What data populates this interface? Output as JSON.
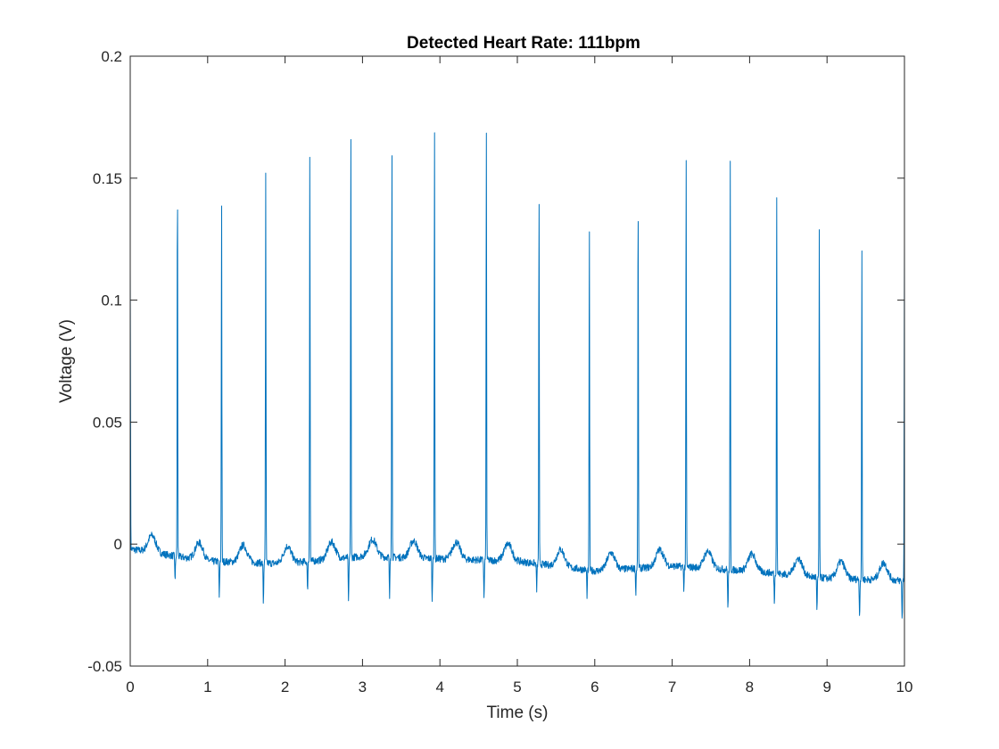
{
  "chart_data": {
    "type": "line",
    "title": "Detected Heart Rate: 111bpm",
    "xlabel": "Time (s)",
    "ylabel": "Voltage (V)",
    "xlim": [
      0,
      10
    ],
    "ylim": [
      -0.05,
      0.2
    ],
    "x_ticks": [
      "0",
      "1",
      "2",
      "3",
      "4",
      "5",
      "6",
      "7",
      "8",
      "9",
      "10"
    ],
    "y_ticks": [
      "-0.05",
      "0",
      "0.05",
      "0.1",
      "0.15",
      "0.2"
    ],
    "grid": false,
    "legend": "none",
    "line_color": "#0072BD",
    "series": [
      {
        "r_peaks": [
          {
            "t": 0.0,
            "v": 0.115
          },
          {
            "t": 0.61,
            "v": 0.151
          },
          {
            "t": 1.18,
            "v": 0.143
          },
          {
            "t": 1.75,
            "v": 0.151
          },
          {
            "t": 2.32,
            "v": 0.163
          },
          {
            "t": 2.85,
            "v": 0.166
          },
          {
            "t": 3.38,
            "v": 0.163
          },
          {
            "t": 3.93,
            "v": 0.173
          },
          {
            "t": 4.6,
            "v": 0.168
          },
          {
            "t": 5.28,
            "v": 0.142
          },
          {
            "t": 5.93,
            "v": 0.132
          },
          {
            "t": 6.56,
            "v": 0.145
          },
          {
            "t": 7.18,
            "v": 0.16
          },
          {
            "t": 7.75,
            "v": 0.156
          },
          {
            "t": 8.35,
            "v": 0.142
          },
          {
            "t": 8.9,
            "v": 0.129
          },
          {
            "t": 9.45,
            "v": 0.12
          },
          {
            "t": 10.0,
            "v": 0.124
          }
        ],
        "s_troughs": [
          {
            "t": 0.58,
            "v": -0.015
          },
          {
            "t": 1.15,
            "v": -0.022
          },
          {
            "t": 1.72,
            "v": -0.024
          },
          {
            "t": 2.29,
            "v": -0.019
          },
          {
            "t": 2.82,
            "v": -0.025
          },
          {
            "t": 3.35,
            "v": -0.022
          },
          {
            "t": 3.9,
            "v": -0.024
          },
          {
            "t": 4.57,
            "v": -0.023
          },
          {
            "t": 5.25,
            "v": -0.019
          },
          {
            "t": 5.9,
            "v": -0.021
          },
          {
            "t": 6.53,
            "v": -0.02
          },
          {
            "t": 7.15,
            "v": -0.018
          },
          {
            "t": 7.72,
            "v": -0.027
          },
          {
            "t": 8.32,
            "v": -0.024
          },
          {
            "t": 8.87,
            "v": -0.028
          },
          {
            "t": 9.42,
            "v": -0.03
          },
          {
            "t": 9.97,
            "v": -0.031
          }
        ],
        "baseline": [
          {
            "t": 0.0,
            "v": -0.002
          },
          {
            "t": 1.0,
            "v": -0.007
          },
          {
            "t": 2.0,
            "v": -0.008
          },
          {
            "t": 3.0,
            "v": -0.005
          },
          {
            "t": 4.0,
            "v": -0.006
          },
          {
            "t": 5.0,
            "v": -0.007
          },
          {
            "t": 6.0,
            "v": -0.011
          },
          {
            "t": 7.0,
            "v": -0.009
          },
          {
            "t": 8.0,
            "v": -0.011
          },
          {
            "t": 9.0,
            "v": -0.014
          },
          {
            "t": 10.0,
            "v": -0.015
          }
        ],
        "t_wave_amplitude": 0.007
      }
    ]
  }
}
